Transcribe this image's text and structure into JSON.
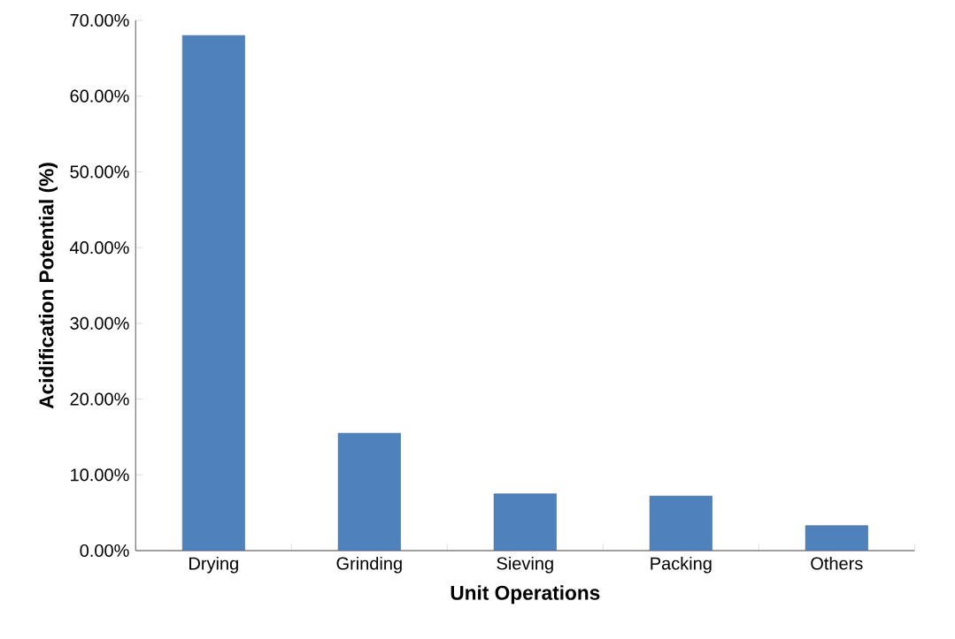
{
  "chart_data": {
    "type": "bar",
    "xlabel": "Unit Operations",
    "ylabel": "Acidification Potential (%)",
    "categories": [
      "Drying",
      "Grinding",
      "Sieving",
      "Packing",
      "Others"
    ],
    "values": [
      68,
      15.5,
      7.5,
      7.2,
      3.3
    ],
    "color": "#4f81bd",
    "ylim": [
      0,
      70
    ],
    "yticks": [
      {
        "value": 0,
        "label": "0.00%"
      },
      {
        "value": 10,
        "label": "10.00%"
      },
      {
        "value": 20,
        "label": "20.00%"
      },
      {
        "value": 30,
        "label": "30.00%"
      },
      {
        "value": 40,
        "label": "40.00%"
      },
      {
        "value": 50,
        "label": "50.00%"
      },
      {
        "value": 60,
        "label": "60.00%"
      },
      {
        "value": 70,
        "label": "70.00%"
      }
    ],
    "grid": false
  }
}
